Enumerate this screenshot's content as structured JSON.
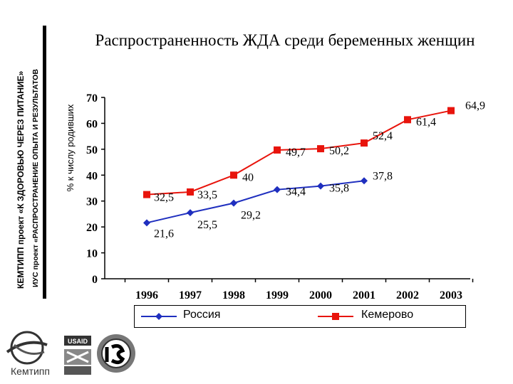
{
  "side": {
    "line1": "КЕМТИПП проект «К ЗДОРОВЬЮ ЧЕРЕЗ ПИТАНИЕ»",
    "line2": "ИУС проект «РАСПРОСТРАНЕНИЕ ОПЫТА И РЕЗУЛЬТАТОВ"
  },
  "logos": {
    "kemtipp": "Кемтипп",
    "usaid": "USAID"
  },
  "chart_data": {
    "type": "line",
    "title": "Распространенность ЖДА среди беременных женщин",
    "ylabel": "% к числу родивших",
    "xlabel": "",
    "categories": [
      "1996",
      "1997",
      "1998",
      "1999",
      "2000",
      "2001",
      "2002",
      "2003"
    ],
    "y_ticks": [
      "0",
      "10",
      "20",
      "30",
      "40",
      "50",
      "60",
      "70"
    ],
    "ylim": [
      0,
      70
    ],
    "grid": false,
    "legend_position": "bottom",
    "series": [
      {
        "name": "Россия",
        "color": "#1f2fbf",
        "marker": "diamond",
        "values": [
          21.6,
          25.5,
          29.2,
          34.4,
          35.8,
          37.8,
          null,
          null
        ],
        "labels": [
          "21,6",
          "25,5",
          "29,2",
          "34,4",
          "35,8",
          "37,8",
          "",
          ""
        ]
      },
      {
        "name": "Кемерово",
        "color": "#e8140c",
        "marker": "square",
        "values": [
          32.5,
          33.5,
          40,
          49.7,
          50.2,
          52.4,
          61.4,
          64.9
        ],
        "labels": [
          "32,5",
          "33,5",
          "40",
          "49,7",
          "50,2",
          "52,4",
          "61,4",
          "64,9"
        ]
      }
    ]
  }
}
